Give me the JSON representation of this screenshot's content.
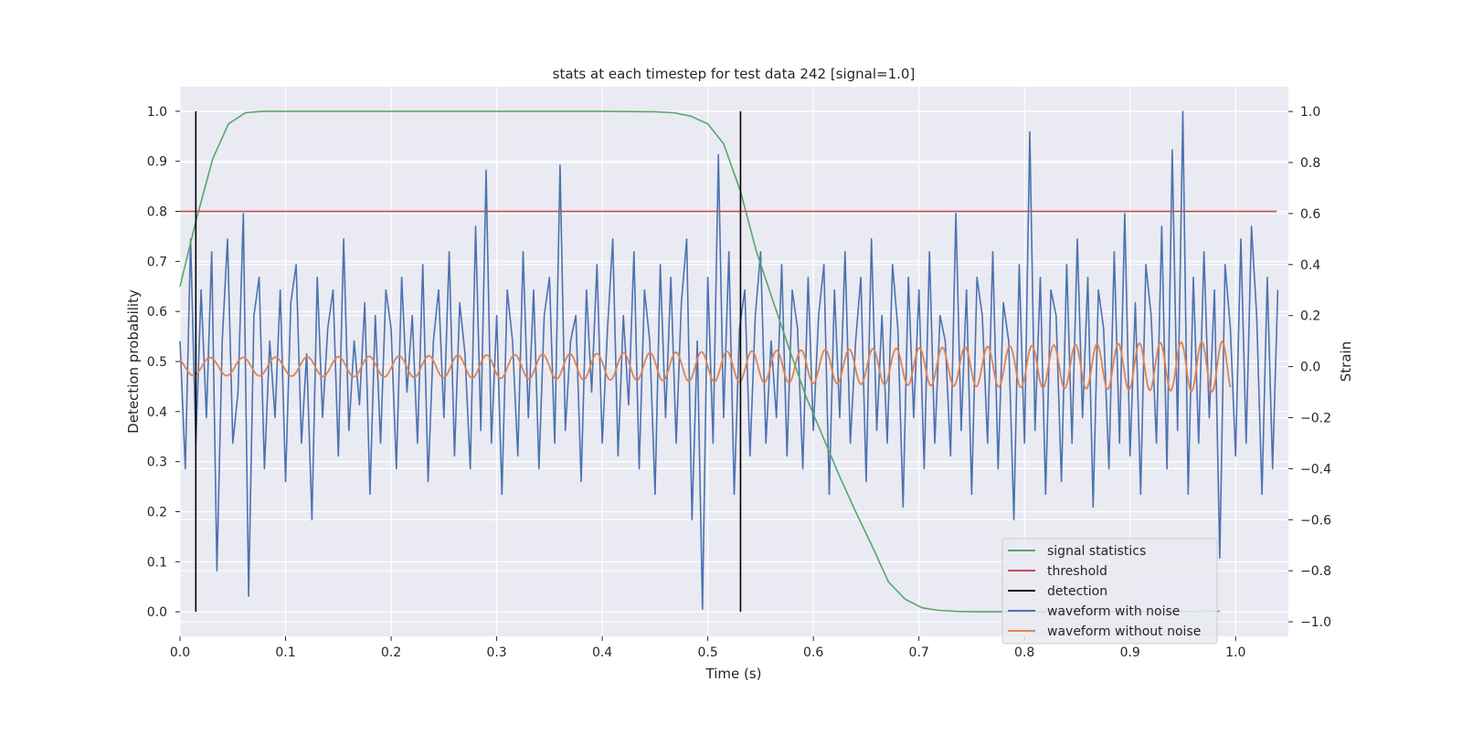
{
  "chart_data": {
    "type": "line",
    "title": "stats at each timestep for test data 242 [signal=1.0]",
    "xlabel": "Time (s)",
    "ylabel": "Detection probability",
    "ylabel_right": "Strain",
    "xlim": [
      0.0,
      1.05
    ],
    "ylim": [
      -0.049,
      1.049
    ],
    "ylim_right": [
      -1.057,
      1.097
    ],
    "xticks": [
      "0.0",
      "0.1",
      "0.2",
      "0.3",
      "0.4",
      "0.5",
      "0.6",
      "0.7",
      "0.8",
      "0.9",
      "1.0"
    ],
    "yticks": [
      "0.0",
      "0.1",
      "0.2",
      "0.3",
      "0.4",
      "0.5",
      "0.6",
      "0.7",
      "0.8",
      "0.9",
      "1.0"
    ],
    "yticks_right": [
      "1.0",
      "0.8",
      "0.6",
      "0.4",
      "0.2",
      "0.0",
      "−0.2",
      "−0.4",
      "−0.6",
      "−0.8",
      "−1.0"
    ],
    "grid": true,
    "legend_position": "lower-right",
    "colors": {
      "background": "#eaeaf2",
      "signal": "#55a868",
      "threshold": "#c44e52",
      "detection": "#000000",
      "noisy": "#4c72b0",
      "clean": "#dd8452"
    },
    "legend": [
      "signal statistics",
      "threshold",
      "detection",
      "waveform with noise",
      "waveform without noise"
    ],
    "signal_statistics": {
      "x": [
        0,
        0.015,
        0.031,
        0.046,
        0.062,
        0.078,
        0.1,
        0.2,
        0.3,
        0.4,
        0.45,
        0.468,
        0.484,
        0.5,
        0.515,
        0.531,
        0.546,
        0.562,
        0.578,
        0.593,
        0.609,
        0.625,
        0.64,
        0.656,
        0.671,
        0.687,
        0.703,
        0.718,
        0.734,
        0.75,
        0.9,
        0.985
      ],
      "y": [
        0.65,
        0.78,
        0.905,
        0.975,
        0.997,
        1.0,
        1.0,
        1.0,
        1.0,
        1.0,
        0.999,
        0.997,
        0.99,
        0.975,
        0.935,
        0.84,
        0.72,
        0.62,
        0.52,
        0.43,
        0.35,
        0.27,
        0.2,
        0.13,
        0.06,
        0.025,
        0.008,
        0.003,
        0.001,
        0.0,
        0.0,
        0.001
      ]
    },
    "threshold": {
      "value": 0.8,
      "x": [
        0,
        1.039
      ]
    },
    "detections": [
      0.015,
      0.531
    ],
    "waveform_without_noise": {
      "type": "chirp",
      "t_start": 0,
      "t_end": 0.995,
      "f_start_hz": 31,
      "f_end_hz": 52,
      "amp_start": 0.035,
      "amp_end": 0.1,
      "peak_time": 0.0285
    },
    "waveform_with_noise": {
      "dt": 0.005,
      "values": [
        0.1,
        -0.4,
        0.5,
        -0.3,
        0.3,
        -0.2,
        0.45,
        -0.8,
        0.1,
        0.5,
        -0.3,
        -0.1,
        0.6,
        -0.9,
        0.2,
        0.35,
        -0.4,
        0.1,
        -0.2,
        0.3,
        -0.45,
        0.25,
        0.4,
        -0.3,
        0.05,
        -0.6,
        0.35,
        -0.2,
        0.15,
        0.3,
        -0.35,
        0.5,
        -0.25,
        0.1,
        -0.15,
        0.25,
        -0.5,
        0.2,
        -0.3,
        0.3,
        0.15,
        -0.4,
        0.35,
        -0.1,
        0.2,
        -0.3,
        0.4,
        -0.45,
        0.1,
        0.3,
        -0.2,
        0.45,
        -0.35,
        0.25,
        0.05,
        -0.4,
        0.55,
        -0.25,
        0.77,
        -0.3,
        0.2,
        -0.5,
        0.3,
        0.1,
        -0.35,
        0.45,
        -0.2,
        0.3,
        -0.4,
        0.2,
        0.35,
        -0.3,
        0.79,
        -0.25,
        0.1,
        0.2,
        -0.45,
        0.3,
        -0.1,
        0.4,
        -0.3,
        0.15,
        0.5,
        -0.35,
        0.2,
        -0.15,
        0.45,
        -0.4,
        0.3,
        0.1,
        -0.5,
        0.4,
        -0.2,
        0.35,
        -0.3,
        0.25,
        0.5,
        -0.6,
        0.1,
        -0.95,
        0.35,
        -0.3,
        0.83,
        -0.2,
        0.45,
        -0.5,
        0.15,
        0.3,
        -0.35,
        0.2,
        0.45,
        -0.3,
        0.1,
        -0.2,
        0.4,
        -0.35,
        0.3,
        0.15,
        -0.4,
        0.35,
        -0.25,
        0.2,
        0.4,
        -0.5,
        0.3,
        -0.2,
        0.45,
        -0.3,
        0.1,
        0.35,
        -0.45,
        0.5,
        -0.25,
        0.2,
        -0.3,
        0.4,
        0.15,
        -0.55,
        0.35,
        -0.2,
        0.3,
        -0.4,
        0.45,
        -0.3,
        0.2,
        0.1,
        -0.35,
        0.6,
        -0.25,
        0.3,
        -0.5,
        0.35,
        0.2,
        -0.3,
        0.45,
        -0.4,
        0.25,
        0.1,
        -0.6,
        0.4,
        -0.3,
        0.92,
        -0.25,
        0.35,
        -0.5,
        0.3,
        0.2,
        -0.45,
        0.4,
        -0.3,
        0.5,
        -0.2,
        0.35,
        -0.55,
        0.3,
        0.15,
        -0.4,
        0.45,
        -0.3,
        0.6,
        -0.35,
        0.25,
        -0.5,
        0.4,
        0.2,
        -0.3,
        0.55,
        -0.4,
        0.85,
        -0.25,
        1.0,
        -0.5,
        0.35,
        -0.3,
        0.45,
        -0.2,
        0.3,
        -0.75,
        0.4,
        0.15,
        -0.35,
        0.5,
        -0.3,
        0.55,
        0.2,
        -0.5,
        0.35,
        -0.4,
        0.3
      ]
    }
  }
}
